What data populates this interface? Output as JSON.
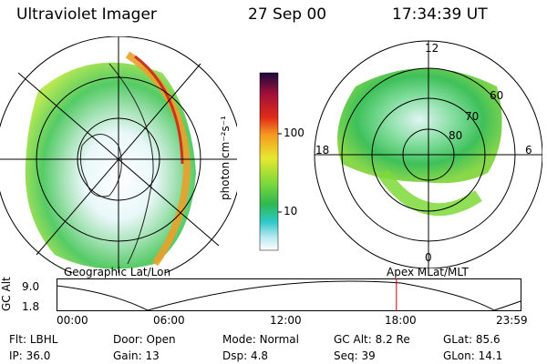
{
  "header": {
    "title": "Ultraviolet Imager",
    "date": "27 Sep 00",
    "time": "17:34:39 UT"
  },
  "colorbar": {
    "unit_label": "photon cm⁻²s⁻¹",
    "ticks": [
      "100",
      "10"
    ]
  },
  "polar_plot": {
    "mlt_labels": [
      "12",
      "18",
      "6",
      "0"
    ],
    "lat_labels": [
      "60",
      "70",
      "80"
    ]
  },
  "captions": {
    "left": "Geographic Lat/Lon",
    "right": "Apex MLat/MLT"
  },
  "altitude_plot": {
    "axis_label": "GC Alt",
    "y_ticks": [
      "9.0",
      "1.8"
    ],
    "x_ticks": [
      "00:00",
      "06:00",
      "12:00",
      "18:00",
      "23:59"
    ],
    "current_marker_time": "17:34"
  },
  "status": {
    "filter": {
      "label": "Flt:",
      "value": "LBHL"
    },
    "ip": {
      "label": "IP:",
      "value": "36.0"
    },
    "door": {
      "label": "Door:",
      "value": "Open"
    },
    "gain": {
      "label": "Gain:",
      "value": "13"
    },
    "mode": {
      "label": "Mode:",
      "value": "Normal"
    },
    "dsp": {
      "label": "Dsp:",
      "value": "4.8"
    },
    "gc_alt": {
      "label": "GC Alt:",
      "value": "8.2 Re"
    },
    "seq": {
      "label": "Seq:",
      "value": "39"
    },
    "glat": {
      "label": "GLat:",
      "value": "85.6"
    },
    "glon": {
      "label": "GLon:",
      "value": "14.1"
    }
  },
  "colors": {
    "accent_marker": "#cc0000"
  }
}
